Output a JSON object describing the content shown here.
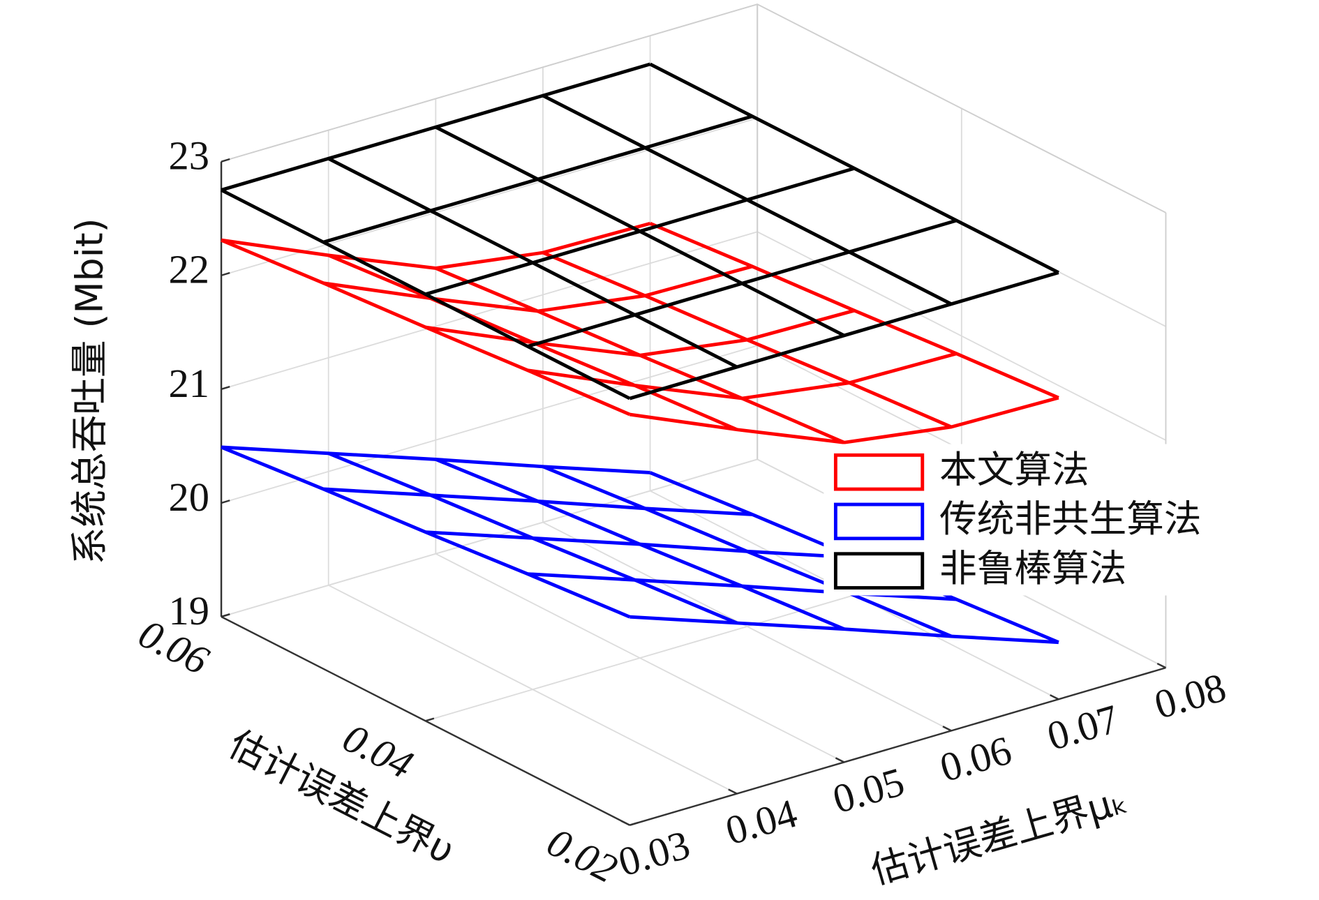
{
  "chart_data": {
    "type": "mesh3d",
    "xlabel": "估计误差上界μₖ",
    "ylabel": "估计误差上界υ",
    "zlabel": "系统总吞吐量 (Mbit)",
    "xlim": [
      0.03,
      0.08
    ],
    "xticks": [
      0.03,
      0.04,
      0.05,
      0.06,
      0.07,
      0.08
    ],
    "ylim": [
      0.02,
      0.06
    ],
    "yticks": [
      0.02,
      0.04,
      0.06
    ],
    "zlim": [
      19,
      23
    ],
    "zticks": [
      19,
      20,
      21,
      22,
      23
    ],
    "grid": true,
    "legend": "right",
    "x": [
      0.03,
      0.04,
      0.05,
      0.06,
      0.07
    ],
    "y": [
      0.02,
      0.03,
      0.04,
      0.05,
      0.06
    ],
    "series": [
      {
        "name": "本文算法",
        "color": "#ff0000",
        "values": [
          [
            22.61,
            22.2,
            21.81,
            21.67,
            21.65
          ],
          [
            22.54,
            22.13,
            21.74,
            21.6,
            21.58
          ],
          [
            22.46,
            22.05,
            21.66,
            21.52,
            21.5
          ],
          [
            22.39,
            21.98,
            21.59,
            21.45,
            21.43
          ],
          [
            22.31,
            21.9,
            21.51,
            21.37,
            21.35
          ]
        ]
      },
      {
        "name": "传统非共生算法",
        "color": "#0000ff",
        "values": [
          [
            20.83,
            20.5,
            20.17,
            19.83,
            19.5
          ],
          [
            20.75,
            20.42,
            20.09,
            19.75,
            19.42
          ],
          [
            20.66,
            20.33,
            20,
            19.66,
            19.33
          ],
          [
            20.58,
            20.25,
            19.92,
            19.58,
            19.25
          ],
          [
            20.49,
            20.16,
            19.83,
            19.49,
            19.16
          ]
        ]
      },
      {
        "name": "非鲁棒算法",
        "color": "#000000",
        "values": [
          [
            22.75,
            22.75,
            22.75,
            22.75,
            22.75
          ],
          [
            22.75,
            22.75,
            22.75,
            22.75,
            22.75
          ],
          [
            22.75,
            22.75,
            22.75,
            22.75,
            22.75
          ],
          [
            22.75,
            22.75,
            22.75,
            22.75,
            22.75
          ],
          [
            22.75,
            22.75,
            22.75,
            22.75,
            22.75
          ]
        ]
      }
    ]
  }
}
